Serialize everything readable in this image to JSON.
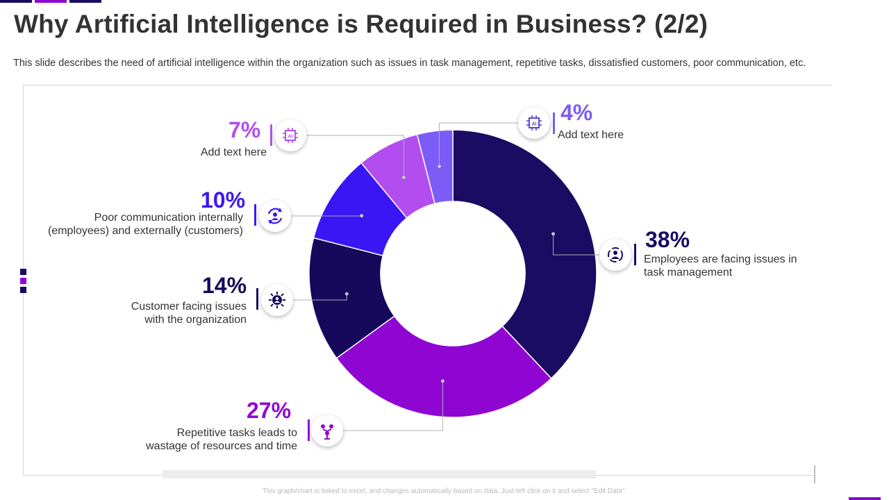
{
  "slide": {
    "title": "Why Artificial Intelligence is Required in Business? (2/2)",
    "subtitle": "This slide describes the need of artificial intelligence within the organization such as issues in task management, repetitive tasks, dissatisfied customers, poor communication, etc.",
    "footer": "This graph/chart is linked to excel, and changes automatically based on data. Just left click on it and select \"Edit Data\"."
  },
  "chart_data": {
    "type": "pie",
    "variant": "donut",
    "start": "top, clockwise",
    "categories": [
      "Employees are facing issues in task management",
      "Repetitive tasks leads to wastage of resources and time",
      "Customer facing issues with the organization",
      "Poor communication internally (employees) and externally (customers)",
      "Add text here",
      "Add text here"
    ],
    "values": [
      38,
      27,
      14,
      10,
      7,
      4
    ],
    "value_labels": [
      "38%",
      "27%",
      "14%",
      "10%",
      "7%",
      "4%"
    ],
    "colors": [
      "#1a0b63",
      "#8f06d3",
      "#16095c",
      "#3b16f5",
      "#b24ef0",
      "#7b5cf7"
    ],
    "icons": [
      "people-network-icon",
      "people-connection-icon",
      "virus-person-icon",
      "refresh-people-icon",
      "ai-chip-icon",
      "ai-chip-icon"
    ]
  },
  "annotations": [
    {
      "id": "a38",
      "percent": "38%",
      "text": "Employees are facing issues in\ntask management",
      "color": "#1a0b63",
      "icon": "people-network-icon"
    },
    {
      "id": "a27",
      "percent": "27%",
      "text": "Repetitive tasks leads to\nwastage of resources and time",
      "color": "#8f06d3",
      "icon": "people-connection-icon"
    },
    {
      "id": "a14",
      "percent": "14%",
      "text": "Customer facing issues\nwith the organization",
      "color": "#16095c",
      "icon": "virus-person-icon"
    },
    {
      "id": "a10",
      "percent": "10%",
      "text": "Poor communication internally\n(employees) and externally  (customers)",
      "color": "#3b16f5",
      "icon": "refresh-people-icon"
    },
    {
      "id": "a7",
      "percent": "7%",
      "text": "Add text here",
      "color": "#b24ef0",
      "icon": "ai-chip-icon"
    },
    {
      "id": "a4",
      "percent": "4%",
      "text": "Add text here",
      "color": "#7b5cf7",
      "icon": "ai-chip-icon"
    }
  ],
  "theme": {
    "primary": "#1a0b63",
    "accent": "#8f06d3",
    "frame": "#d6d6d6"
  }
}
